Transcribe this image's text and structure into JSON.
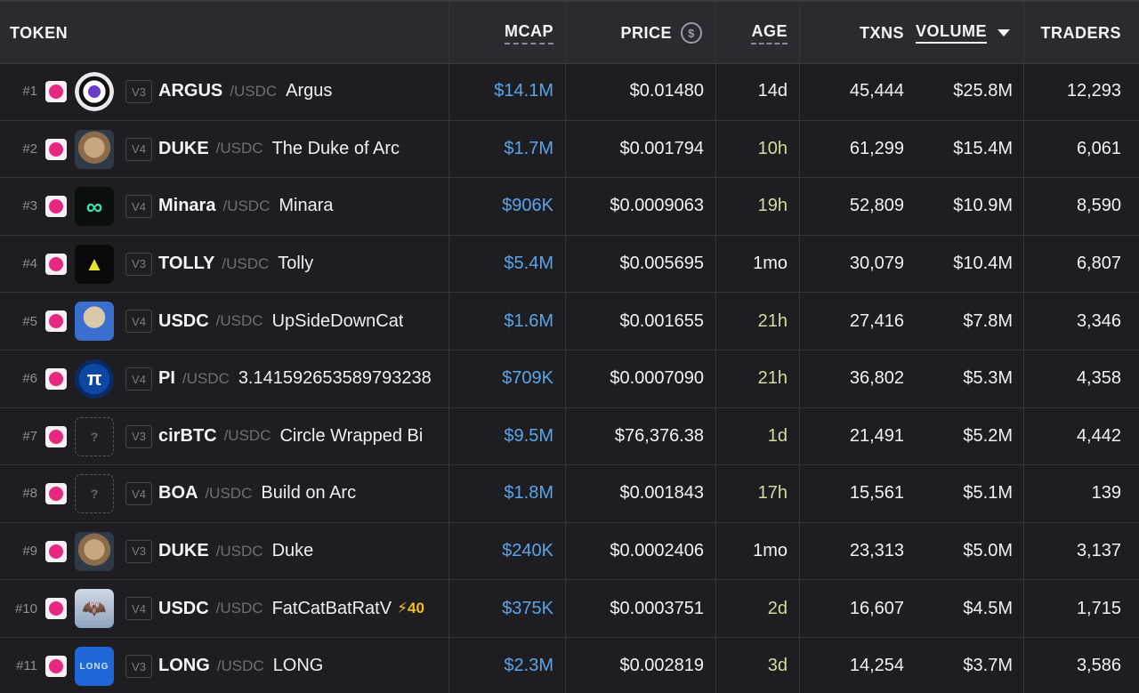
{
  "header": {
    "token": "TOKEN",
    "mcap": "MCAP",
    "price": "PRICE",
    "price_icon": "$",
    "age": "AGE",
    "txns": "TXNS",
    "volume": "VOLUME",
    "traders": "TRADERS"
  },
  "colors": {
    "mcap": "#5aa5ea",
    "recent_age": "#d6dc9e",
    "dex_badge": "#e6287f",
    "boost": "#f2c21b"
  },
  "rows": [
    {
      "rank": "#1",
      "ver": "V3",
      "symbol": "ARGUS",
      "pair": "/USDC",
      "name": "Argus",
      "boost": "",
      "mcap": "$14.1M",
      "price": "$0.01480",
      "age": "14d",
      "txns": "45,444",
      "volume": "$25.8M",
      "traders": "12,293",
      "logo": "eye-icon",
      "recent": false
    },
    {
      "rank": "#2",
      "ver": "V4",
      "symbol": "DUKE",
      "pair": "/USDC",
      "name": "The Duke of Arc",
      "boost": "",
      "mcap": "$1.7M",
      "price": "$0.001794",
      "age": "10h",
      "txns": "61,299",
      "volume": "$15.4M",
      "traders": "6,061",
      "logo": "dog-icon",
      "recent": true
    },
    {
      "rank": "#3",
      "ver": "V4",
      "symbol": "Minara",
      "pair": "/USDC",
      "name": "Minara",
      "boost": "",
      "mcap": "$906K",
      "price": "$0.0009063",
      "age": "19h",
      "txns": "52,809",
      "volume": "$10.9M",
      "traders": "8,590",
      "logo": "infinity-icon",
      "recent": true
    },
    {
      "rank": "#4",
      "ver": "V3",
      "symbol": "TOLLY",
      "pair": "/USDC",
      "name": "Tolly",
      "boost": "",
      "mcap": "$5.4M",
      "price": "$0.005695",
      "age": "1mo",
      "txns": "30,079",
      "volume": "$10.4M",
      "traders": "6,807",
      "logo": "bridge-icon",
      "recent": false
    },
    {
      "rank": "#5",
      "ver": "V4",
      "symbol": "USDC",
      "pair": "/USDC",
      "name": "UpSideDownCat",
      "boost": "",
      "mcap": "$1.6M",
      "price": "$0.001655",
      "age": "21h",
      "txns": "27,416",
      "volume": "$7.8M",
      "traders": "3,346",
      "logo": "cat-icon",
      "recent": true
    },
    {
      "rank": "#6",
      "ver": "V4",
      "symbol": "PI",
      "pair": "/USDC",
      "name": "3.141592653589793238",
      "boost": "",
      "mcap": "$709K",
      "price": "$0.0007090",
      "age": "21h",
      "txns": "36,802",
      "volume": "$5.3M",
      "traders": "4,358",
      "logo": "pi-icon",
      "recent": true
    },
    {
      "rank": "#7",
      "ver": "V3",
      "symbol": "cirBTC",
      "pair": "/USDC",
      "name": "Circle Wrapped Bi",
      "boost": "",
      "mcap": "$9.5M",
      "price": "$76,376.38",
      "age": "1d",
      "txns": "21,491",
      "volume": "$5.2M",
      "traders": "4,442",
      "logo": "placeholder",
      "recent": true
    },
    {
      "rank": "#8",
      "ver": "V4",
      "symbol": "BOA",
      "pair": "/USDC",
      "name": "Build on Arc",
      "boost": "",
      "mcap": "$1.8M",
      "price": "$0.001843",
      "age": "17h",
      "txns": "15,561",
      "volume": "$5.1M",
      "traders": "139",
      "logo": "placeholder",
      "recent": true
    },
    {
      "rank": "#9",
      "ver": "V3",
      "symbol": "DUKE",
      "pair": "/USDC",
      "name": "Duke",
      "boost": "",
      "mcap": "$240K",
      "price": "$0.0002406",
      "age": "1mo",
      "txns": "23,313",
      "volume": "$5.0M",
      "traders": "3,137",
      "logo": "dog-icon",
      "recent": false
    },
    {
      "rank": "#10",
      "ver": "V4",
      "symbol": "USDC",
      "pair": "/USDC",
      "name": "FatCatBatRatV",
      "boost": "⚡40",
      "mcap": "$375K",
      "price": "$0.0003751",
      "age": "2d",
      "txns": "16,607",
      "volume": "$4.5M",
      "traders": "1,715",
      "logo": "batcat-icon",
      "recent": true
    },
    {
      "rank": "#11",
      "ver": "V3",
      "symbol": "LONG",
      "pair": "/USDC",
      "name": "LONG",
      "boost": "",
      "mcap": "$2.3M",
      "price": "$0.002819",
      "age": "3d",
      "txns": "14,254",
      "volume": "$3.7M",
      "traders": "3,586",
      "logo": "long-icon",
      "logo_text": "LONG",
      "recent": true
    }
  ]
}
